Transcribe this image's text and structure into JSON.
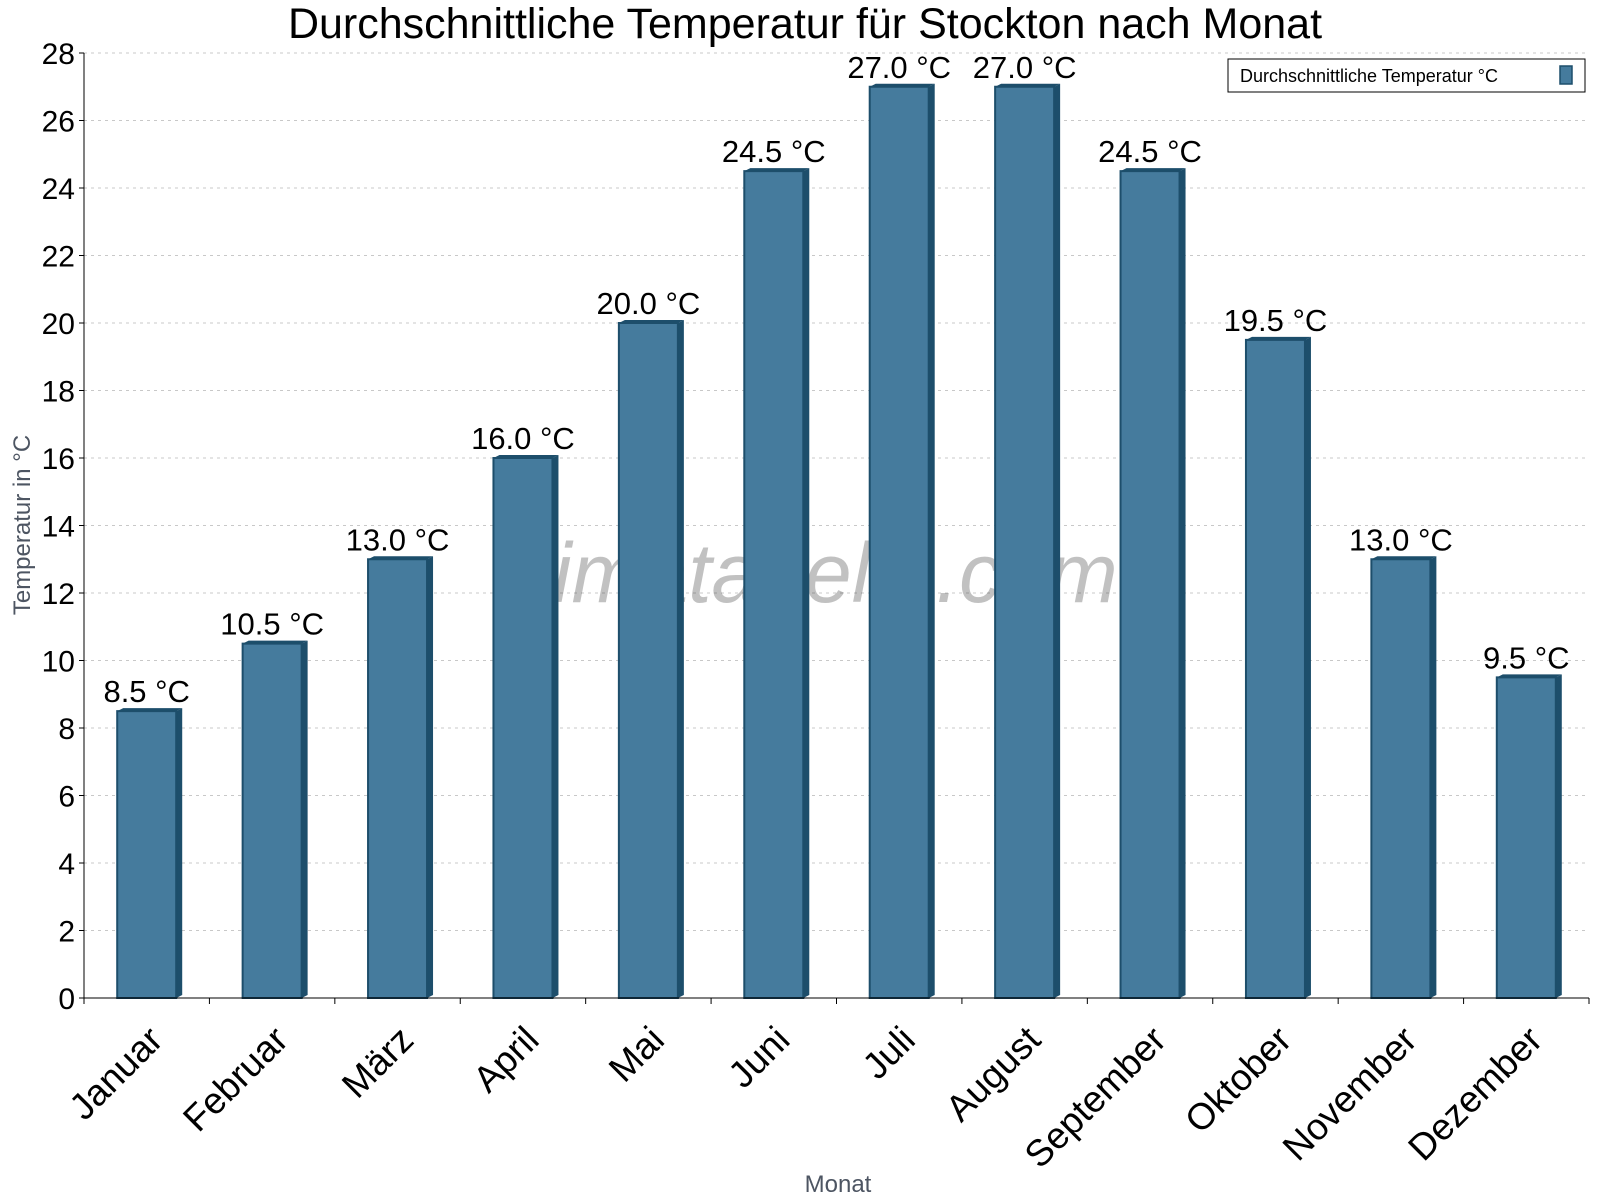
{
  "chart_data": {
    "type": "bar",
    "title": "Durchschnittliche Temperatur für Stockton nach Monat",
    "xlabel": "Monat",
    "ylabel": "Temperatur in °C",
    "categories": [
      "Januar",
      "Februar",
      "März",
      "April",
      "Mai",
      "Juni",
      "Juli",
      "August",
      "September",
      "Oktober",
      "November",
      "Dezember"
    ],
    "series": [
      {
        "name": "Durchschnittliche Temperatur °C",
        "values": [
          8.5,
          10.5,
          13.0,
          16.0,
          20.0,
          24.5,
          27.0,
          27.0,
          24.5,
          19.5,
          13.0,
          9.5
        ],
        "data_labels": [
          "8.5 °C",
          "10.5 °C",
          "13.0 °C",
          "16.0 °C",
          "20.0 °C",
          "24.5 °C",
          "27.0 °C",
          "27.0 °C",
          "24.5 °C",
          "19.5 °C",
          "13.0 °C",
          "9.5 °C"
        ]
      }
    ],
    "ylim": [
      0,
      28
    ],
    "yticks": [
      0,
      2,
      4,
      6,
      8,
      10,
      12,
      14,
      16,
      18,
      20,
      22,
      24,
      26,
      28
    ],
    "grid": true,
    "legend_position": "top-right",
    "colors": {
      "bar": "#457b9d",
      "bar_edge": "#1d4e6b",
      "grid": "#c8c8c8",
      "axis": "#000000",
      "axis_title": "#4d5562"
    }
  },
  "watermark": "klimatabelle.com"
}
